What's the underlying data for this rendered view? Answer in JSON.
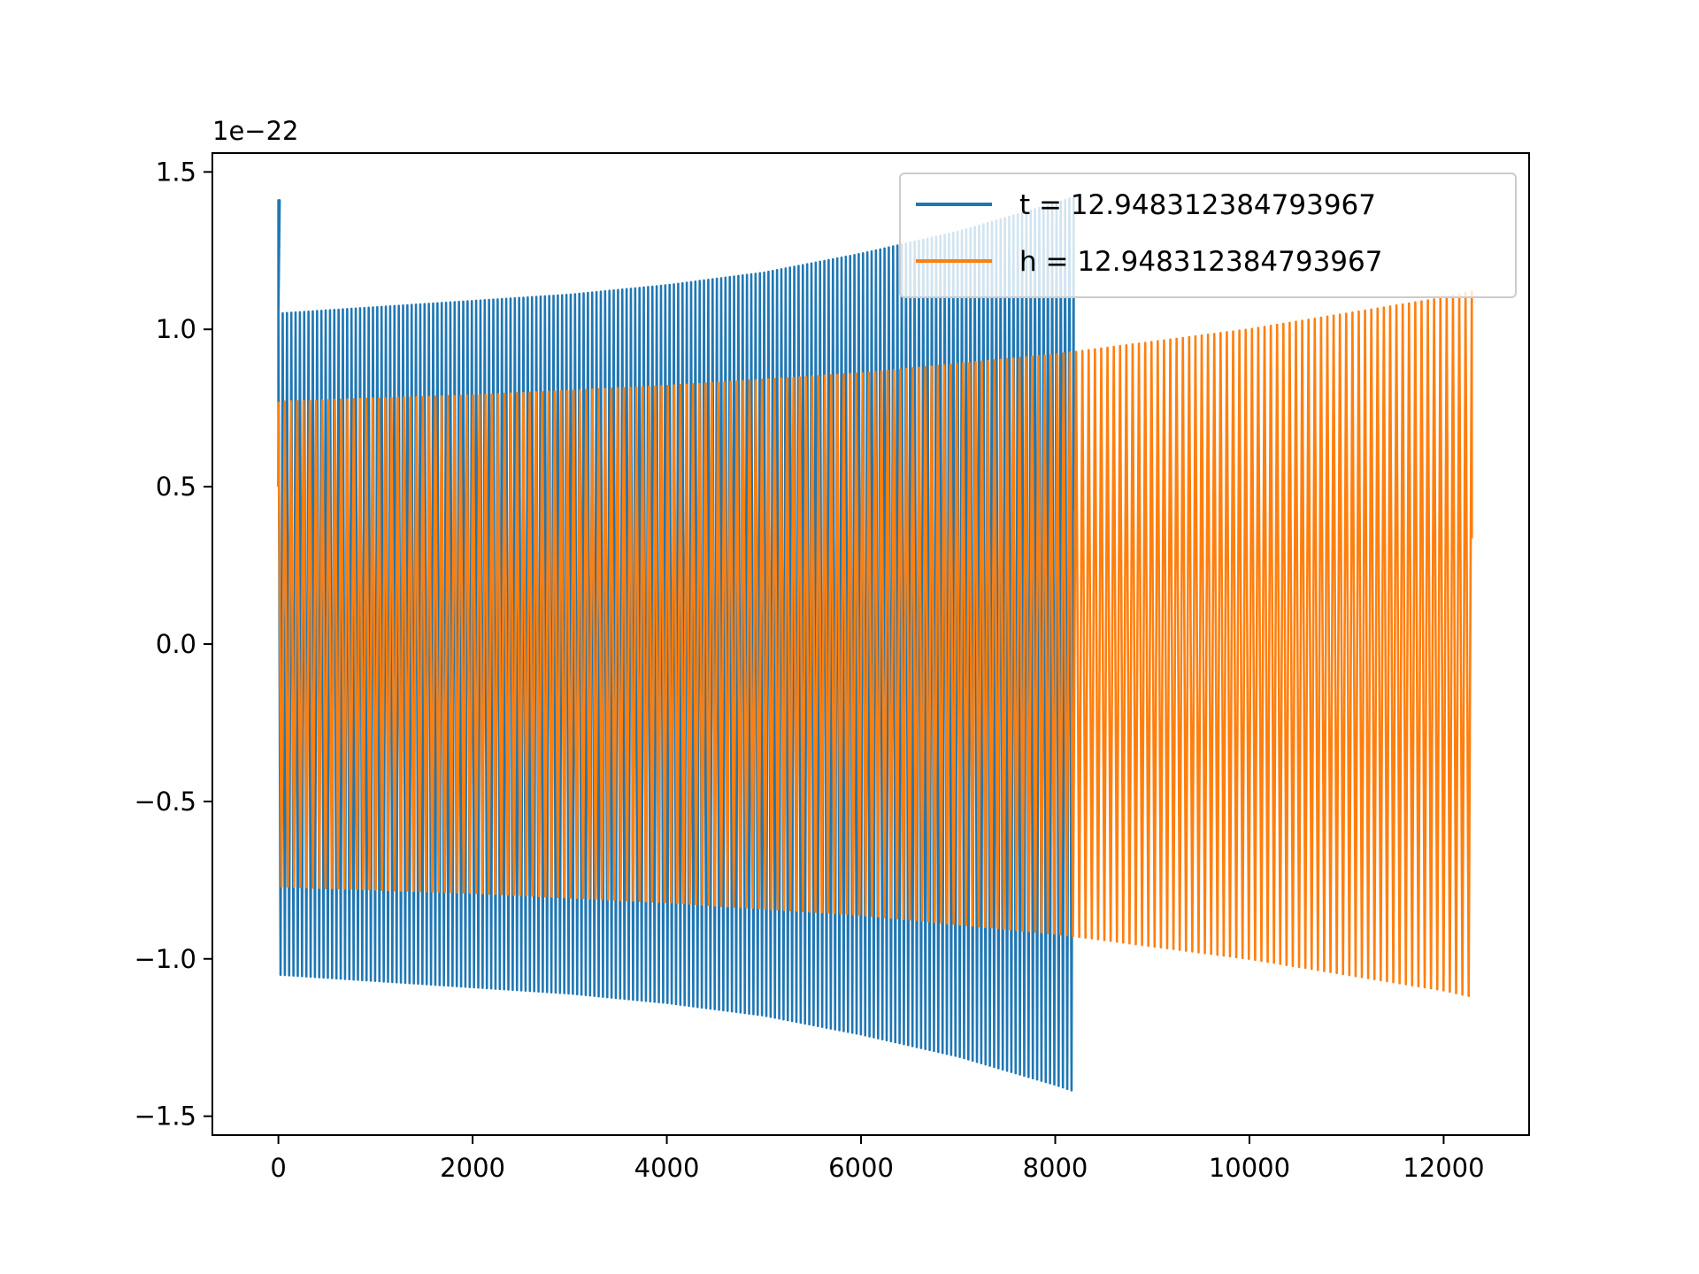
{
  "chart_data": {
    "type": "line",
    "title": "",
    "xlabel": "",
    "ylabel": "",
    "y_offset_label": "1e−22",
    "xlim": [
      -680,
      12880
    ],
    "ylim": [
      -1.56,
      1.56
    ],
    "x_ticks": [
      {
        "value": 0,
        "label": "0"
      },
      {
        "value": 2000,
        "label": "2000"
      },
      {
        "value": 4000,
        "label": "4000"
      },
      {
        "value": 6000,
        "label": "6000"
      },
      {
        "value": 8000,
        "label": "8000"
      },
      {
        "value": 10000,
        "label": "10000"
      },
      {
        "value": 12000,
        "label": "12000"
      }
    ],
    "y_ticks": [
      {
        "value": 1.5,
        "label": "1.5"
      },
      {
        "value": 1.0,
        "label": "1.0"
      },
      {
        "value": 0.5,
        "label": "0.5"
      },
      {
        "value": 0.0,
        "label": "0.0"
      },
      {
        "value": -0.5,
        "label": "−0.5"
      },
      {
        "value": -1.0,
        "label": "−1.0"
      },
      {
        "value": -1.5,
        "label": "−1.5"
      }
    ],
    "grid": false,
    "legend_position": "top-right",
    "series": [
      {
        "name": "t = 12.948312384793967",
        "color": "#1f77b4",
        "x_range": [
          0,
          8190
        ],
        "initial_spike": 1.41,
        "envelope": [
          {
            "x": 0,
            "amp": 1.05
          },
          {
            "x": 1000,
            "amp": 1.07
          },
          {
            "x": 2000,
            "amp": 1.09
          },
          {
            "x": 3000,
            "amp": 1.11
          },
          {
            "x": 4000,
            "amp": 1.14
          },
          {
            "x": 5000,
            "amp": 1.18
          },
          {
            "x": 6000,
            "amp": 1.24
          },
          {
            "x": 7000,
            "amp": 1.31
          },
          {
            "x": 8000,
            "amp": 1.4
          },
          {
            "x": 8190,
            "amp": 1.42
          }
        ],
        "oscillations": 185
      },
      {
        "name": "h = 12.948312384793967",
        "color": "#ff7f0e",
        "x_range": [
          0,
          12290
        ],
        "envelope": [
          {
            "x": 0,
            "amp": 0.77
          },
          {
            "x": 2000,
            "amp": 0.79
          },
          {
            "x": 4000,
            "amp": 0.82
          },
          {
            "x": 6000,
            "amp": 0.86
          },
          {
            "x": 8000,
            "amp": 0.92
          },
          {
            "x": 10000,
            "amp": 1.0
          },
          {
            "x": 12000,
            "amp": 1.1
          },
          {
            "x": 12290,
            "amp": 1.12
          }
        ],
        "oscillations": 190
      }
    ]
  }
}
